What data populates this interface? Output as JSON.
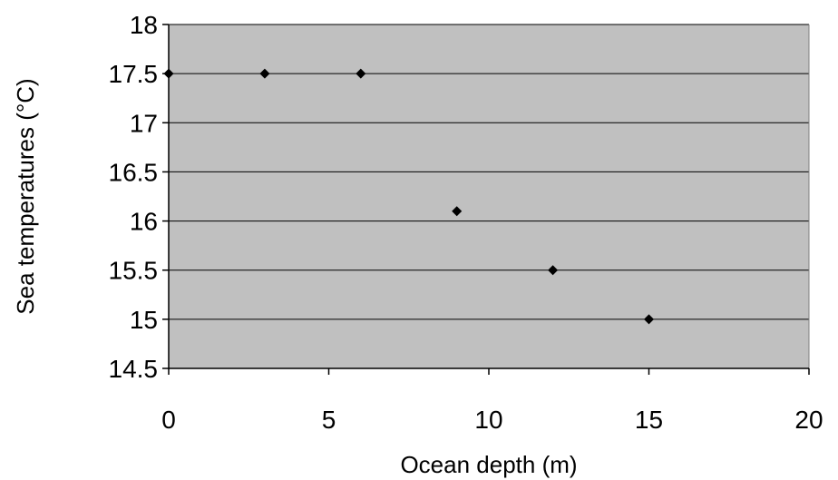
{
  "chart_data": {
    "type": "scatter",
    "title": "",
    "xlabel": "Ocean depth (m)",
    "ylabel": "Sea temperatures (°C)",
    "xlim": [
      0,
      20
    ],
    "ylim": [
      14.5,
      18
    ],
    "x_ticks": [
      "0",
      "5",
      "10",
      "15",
      "20"
    ],
    "y_ticks": [
      "14.5",
      "15",
      "15.5",
      "16",
      "16.5",
      "17",
      "17.5",
      "18"
    ],
    "grid": "horizontal",
    "legend": "none",
    "plot_background": "#c0c0c0",
    "marker": "diamond",
    "marker_color": "#000000",
    "series": [
      {
        "x": [
          0,
          3,
          6,
          9,
          12,
          15
        ],
        "y": [
          17.5,
          17.5,
          17.5,
          16.1,
          15.5,
          15.0
        ]
      }
    ]
  }
}
